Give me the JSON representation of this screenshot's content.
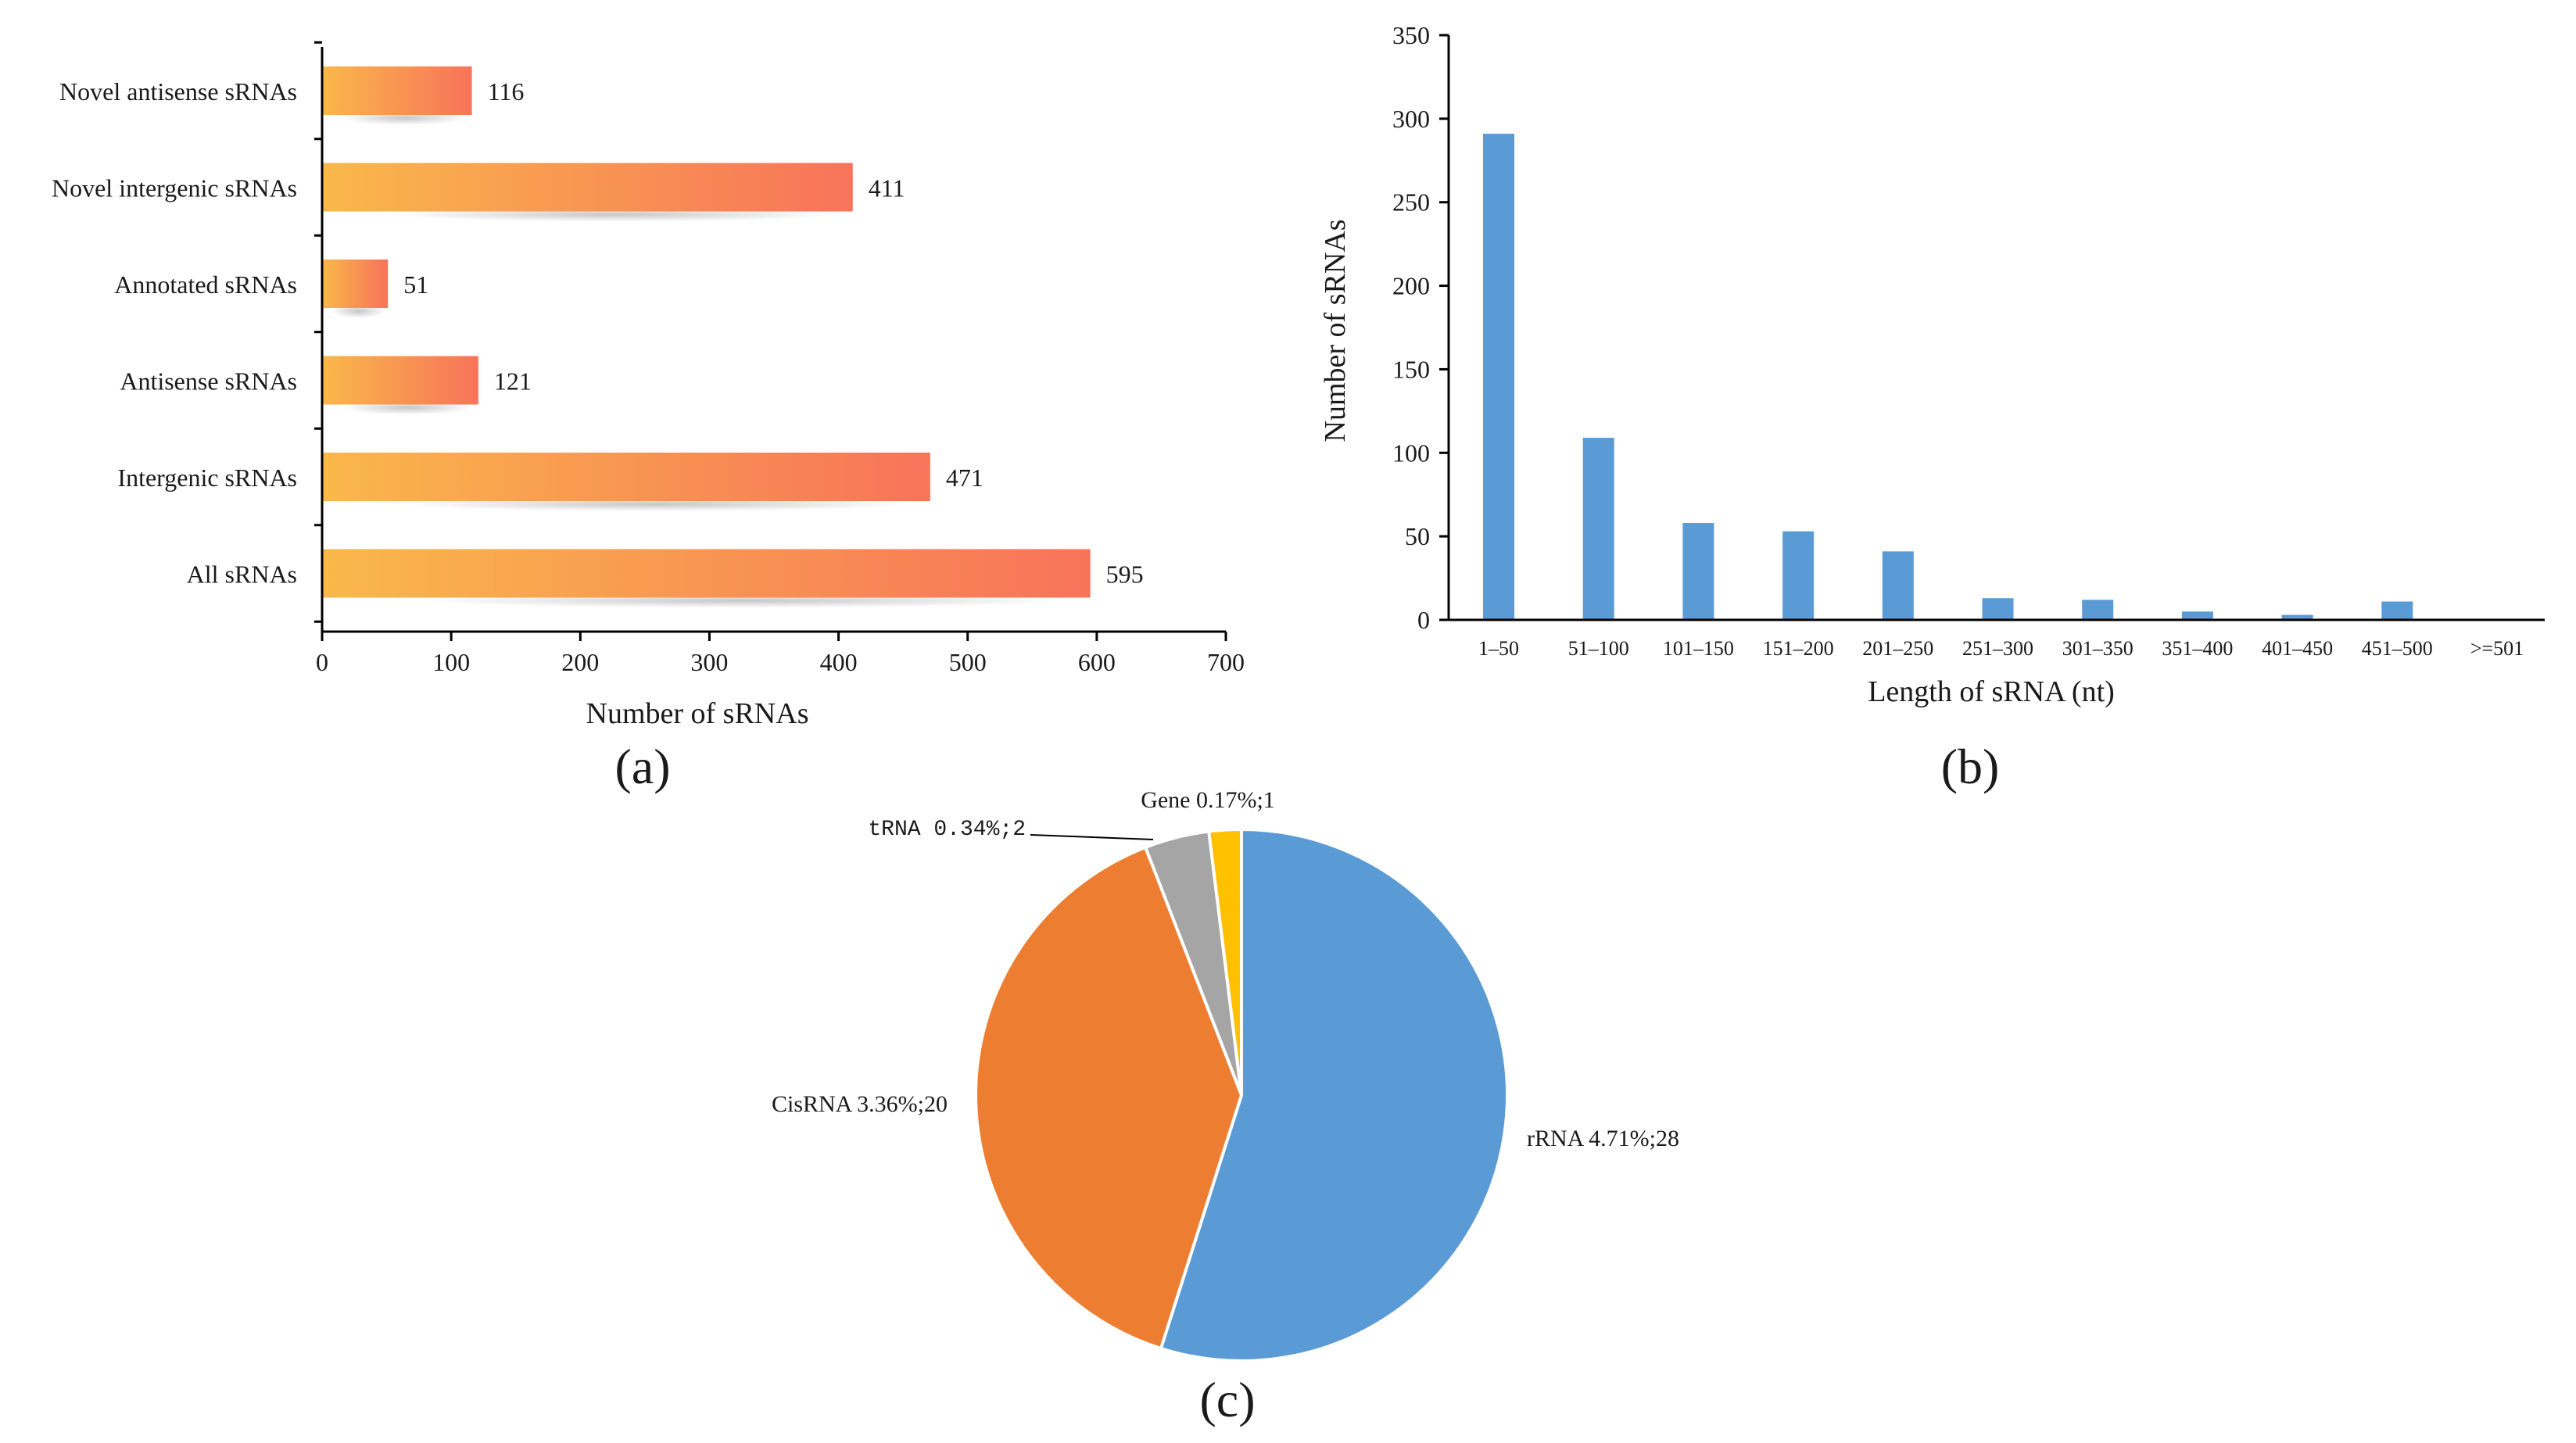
{
  "colors": {
    "bar_gradient_start": "#F9B84A",
    "bar_gradient_end": "#F8735A",
    "histogram_bar": "#5B9BD5",
    "pie_rrna": "#5B9BD5",
    "pie_cisrna": "#ED7D31",
    "pie_trna": "#A5A5A5",
    "pie_gene": "#FFC000",
    "axis": "#000000"
  },
  "chart_data": [
    {
      "id": "a",
      "type": "bar",
      "orientation": "horizontal",
      "panel_label": "(a)",
      "categories": [
        "Novel antisense sRNAs",
        "Novel intergenic sRNAs",
        "Annotated sRNAs",
        "Antisense sRNAs",
        "Intergenic sRNAs",
        "All sRNAs"
      ],
      "values": [
        116,
        411,
        51,
        121,
        471,
        595
      ],
      "value_labels": [
        "116",
        "411",
        "51",
        "121",
        "471",
        "595"
      ],
      "xlabel": "Number of sRNAs",
      "ylabel": "",
      "xlim": [
        0,
        700
      ],
      "xticks": [
        0,
        100,
        200,
        300,
        400,
        500,
        600,
        700
      ],
      "xtick_labels": [
        "0",
        "100",
        "200",
        "300",
        "400",
        "500",
        "600",
        "700"
      ],
      "grid": false
    },
    {
      "id": "b",
      "type": "bar",
      "orientation": "vertical",
      "panel_label": "(b)",
      "categories": [
        "1–50",
        "51–100",
        "101–150",
        "151–200",
        "201–250",
        "251–300",
        "301–350",
        "351–400",
        "401–450",
        "451–500",
        ">=501"
      ],
      "values": [
        291,
        109,
        58,
        53,
        41,
        13,
        12,
        5,
        3,
        11,
        0
      ],
      "xlabel": "Length of sRNA (nt)",
      "ylabel": "Number of sRNAs",
      "ylim": [
        0,
        350
      ],
      "yticks": [
        0,
        50,
        100,
        150,
        200,
        250,
        300,
        350
      ],
      "ytick_labels": [
        "0",
        "50",
        "100",
        "150",
        "200",
        "250",
        "300",
        "350"
      ],
      "grid": false
    },
    {
      "id": "c",
      "type": "pie",
      "panel_label": "(c)",
      "slices": [
        {
          "name": "rRNA",
          "percent_label": "4.71%",
          "count": 28,
          "label": "rRNA 4.71%;28",
          "color": "#5B9BD5"
        },
        {
          "name": "CisRNA",
          "percent_label": "3.36%",
          "count": 20,
          "label": "CisRNA 3.36%;20",
          "color": "#ED7D31"
        },
        {
          "name": "tRNA",
          "percent_label": "0.34%",
          "count": 2,
          "label": "tRNA 0.34%;2",
          "color": "#A5A5A5"
        },
        {
          "name": "Gene",
          "percent_label": "0.17%",
          "count": 1,
          "label": "Gene 0.17%;1",
          "color": "#FFC000"
        }
      ],
      "start_angle_deg": 0,
      "direction": "clockwise"
    }
  ]
}
